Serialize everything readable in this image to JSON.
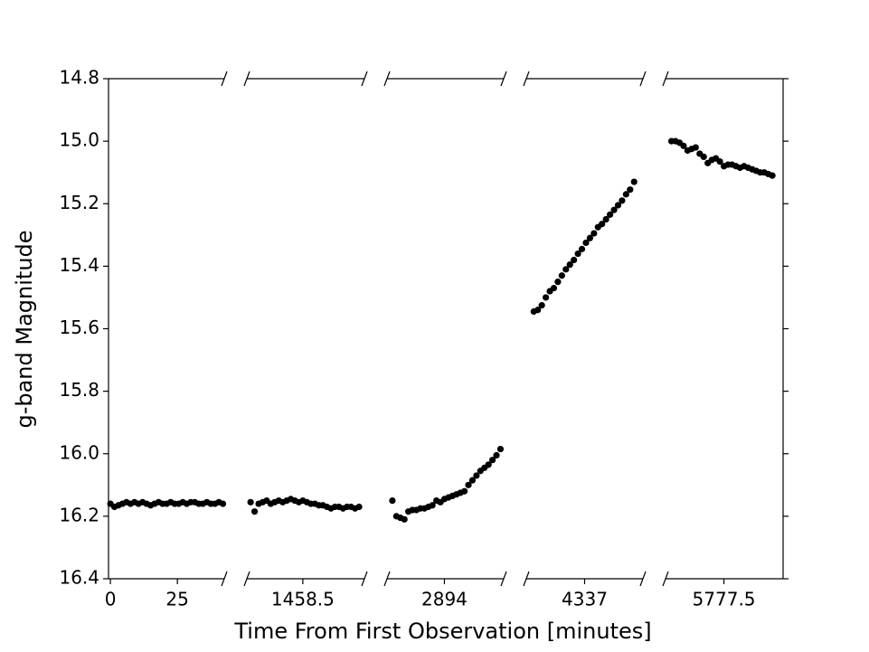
{
  "chart_data": {
    "type": "scatter",
    "xlabel": "Time From First Observation [minutes]",
    "ylabel": "g-band Magnitude",
    "ylim": [
      14.8,
      16.4
    ],
    "y_inverted": true,
    "yticks": [
      14.8,
      {
        "value": 15,
        "label": "15.0"
      },
      15.2,
      15.4,
      15.6,
      15.8,
      {
        "value": 16,
        "label": "16.0"
      },
      16.2,
      16.4
    ],
    "color": "#000000",
    "panels": [
      {
        "xlim": [
          -0.7,
          42.5
        ],
        "xticks": [
          0,
          25
        ],
        "x": [
          0,
          1.5,
          3,
          4.5,
          6,
          7.5,
          9,
          10.5,
          12,
          13.5,
          15,
          16.5,
          18,
          19.5,
          21,
          22.5,
          24,
          25.5,
          27,
          28.5,
          30,
          31.5,
          33,
          34.5,
          36,
          37.5,
          39,
          40.5,
          42
        ],
        "values": [
          16.16,
          16.17,
          16.165,
          16.16,
          16.155,
          16.16,
          16.155,
          16.16,
          16.155,
          16.16,
          16.165,
          16.16,
          16.155,
          16.16,
          16.16,
          16.155,
          16.16,
          16.16,
          16.155,
          16.16,
          16.155,
          16.155,
          16.16,
          16.16,
          16.155,
          16.16,
          16.16,
          16.155,
          16.16
        ]
      },
      {
        "xlim": [
          1437.6,
          1481.5
        ],
        "xticks": [
          1458.5
        ],
        "x": [
          1439,
          1440.5,
          1442,
          1443.5,
          1445,
          1446.5,
          1448,
          1449.5,
          1451,
          1452.5,
          1454,
          1455.5,
          1457,
          1458.5,
          1460,
          1461.5,
          1463,
          1464.5,
          1466,
          1467.5,
          1469,
          1470.5,
          1472,
          1473.5,
          1475,
          1476.5,
          1478,
          1479.5
        ],
        "values": [
          16.155,
          16.185,
          16.16,
          16.155,
          16.15,
          16.16,
          16.155,
          16.15,
          16.155,
          16.15,
          16.145,
          16.15,
          16.155,
          16.15,
          16.155,
          16.16,
          16.16,
          16.165,
          16.165,
          16.17,
          16.175,
          16.17,
          16.17,
          16.175,
          16.17,
          16.17,
          16.175,
          16.17
        ]
      },
      {
        "xlim": [
          2872.5,
          2916.2
        ],
        "xticks": [
          2894
        ],
        "x": [
          2874.5,
          2876,
          2877.5,
          2879,
          2880.5,
          2882,
          2883.5,
          2885,
          2886.5,
          2888,
          2889.5,
          2891,
          2892.5,
          2894,
          2895.5,
          2897,
          2898.5,
          2900,
          2901.5,
          2903,
          2904.5,
          2906,
          2907.5,
          2909,
          2910.5,
          2912,
          2913.5,
          2915
        ],
        "values": [
          16.15,
          16.2,
          16.205,
          16.21,
          16.185,
          16.18,
          16.18,
          16.175,
          16.175,
          16.17,
          16.165,
          16.15,
          16.155,
          16.145,
          16.14,
          16.135,
          16.13,
          16.125,
          16.12,
          16.1,
          16.085,
          16.07,
          16.055,
          16.045,
          16.035,
          16.02,
          16.005,
          15.985
        ]
      },
      {
        "xlim": [
          4315.2,
          4358.8
        ],
        "xticks": [
          4337
        ],
        "x": [
          4318,
          4319.5,
          4321,
          4322.5,
          4324,
          4325.5,
          4327,
          4328.5,
          4330,
          4331.5,
          4333,
          4334.5,
          4336,
          4337.5,
          4339,
          4340.5,
          4342,
          4343.5,
          4345,
          4346.5,
          4348,
          4349.5,
          4351,
          4352.5,
          4354,
          4355.5
        ],
        "values": [
          15.545,
          15.54,
          15.525,
          15.5,
          15.48,
          15.47,
          15.45,
          15.43,
          15.41,
          15.395,
          15.38,
          15.36,
          15.345,
          15.325,
          15.31,
          15.295,
          15.275,
          15.265,
          15.25,
          15.235,
          15.22,
          15.205,
          15.19,
          15.17,
          15.155,
          15.13
        ]
      },
      {
        "xlim": [
          5755.8,
          5799.5
        ],
        "xticks": [
          5777.5
        ],
        "x": [
          5758,
          5759.5,
          5761,
          5762.5,
          5764,
          5765.5,
          5767,
          5768.5,
          5770,
          5771.5,
          5773,
          5774.5,
          5776,
          5777.5,
          5779,
          5780.5,
          5782,
          5783.5,
          5785,
          5786.5,
          5788,
          5789.5,
          5791,
          5792.5,
          5794,
          5795.5
        ],
        "values": [
          15.0,
          15.0,
          15.005,
          15.015,
          15.03,
          15.025,
          15.02,
          15.04,
          15.05,
          15.07,
          15.06,
          15.055,
          15.065,
          15.08,
          15.075,
          15.075,
          15.08,
          15.085,
          15.08,
          15.085,
          15.09,
          15.095,
          15.1,
          15.1,
          15.105,
          15.11
        ]
      }
    ]
  }
}
